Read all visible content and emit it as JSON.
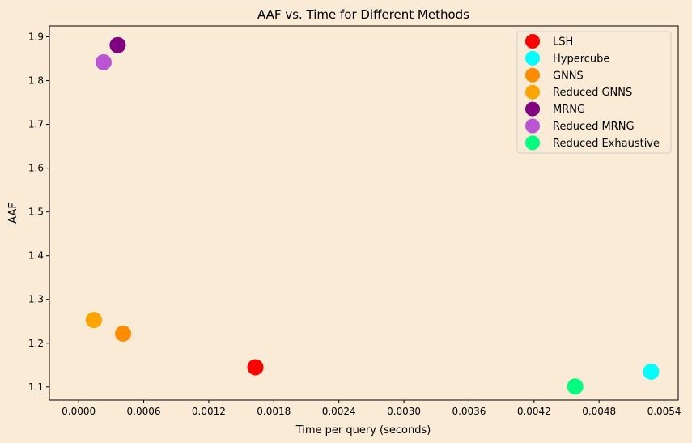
{
  "chart_data": {
    "type": "scatter",
    "title": "AAF vs. Time for Different Methods",
    "xlabel": "Time per query (seconds)",
    "ylabel": "AAF",
    "xlim": [
      -0.00027,
      0.00553
    ],
    "ylim": [
      1.07,
      1.925
    ],
    "xticks": [
      "0.0000",
      "0.0006",
      "0.0012",
      "0.0018",
      "0.0024",
      "0.0030",
      "0.0036",
      "0.0042",
      "0.0048",
      "0.0054"
    ],
    "yticks": [
      "1.1",
      "1.2",
      "1.3",
      "1.4",
      "1.5",
      "1.6",
      "1.7",
      "1.8",
      "1.9"
    ],
    "grid": false,
    "legend_position": "top-right",
    "series": [
      {
        "name": "LSH",
        "color": "#ff0000",
        "x": 0.00163,
        "y": 1.145
      },
      {
        "name": "Hypercube",
        "color": "#00ffff",
        "x": 0.00528,
        "y": 1.135
      },
      {
        "name": "GNNS",
        "color": "#ff8c00",
        "x": 0.00041,
        "y": 1.222
      },
      {
        "name": "Reduced GNNS",
        "color": "#ffa500",
        "x": 0.00014,
        "y": 1.253
      },
      {
        "name": "MRNG",
        "color": "#800080",
        "x": 0.00036,
        "y": 1.881
      },
      {
        "name": "Reduced MRNG",
        "color": "#ba55d3",
        "x": 0.00023,
        "y": 1.842
      },
      {
        "name": "Reduced Exhaustive",
        "color": "#00ff7f",
        "x": 0.00458,
        "y": 1.101
      }
    ]
  }
}
